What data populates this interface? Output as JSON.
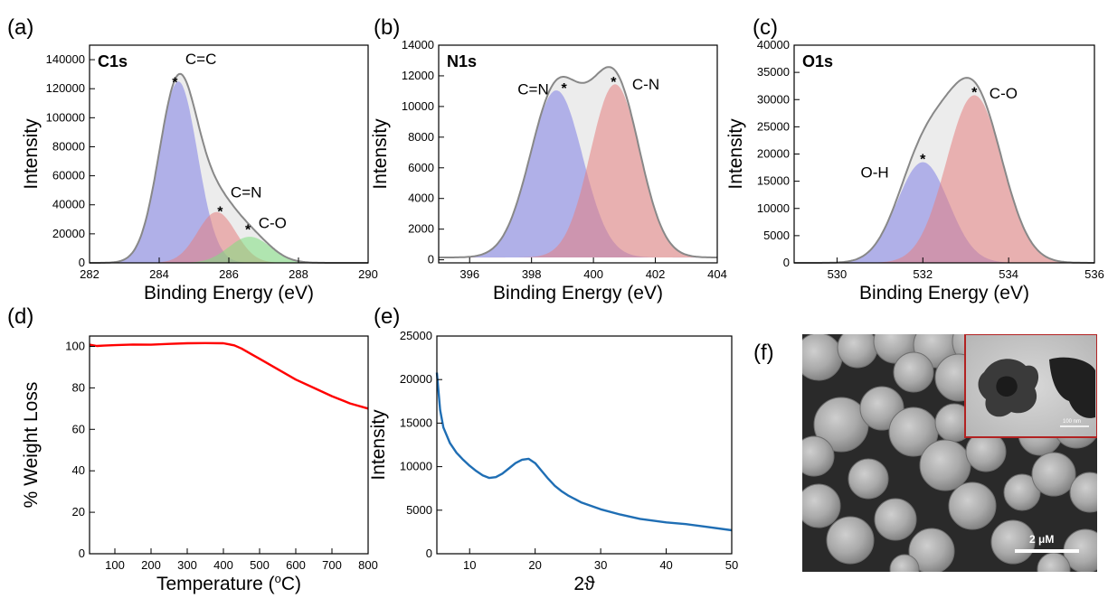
{
  "chart_data": [
    {
      "panel_label": "(a)",
      "type": "area",
      "title": "C1s",
      "xlabel": "Binding Energy (eV)",
      "ylabel": "Intensity",
      "xlim": [
        282,
        290
      ],
      "ylim": [
        0,
        150000
      ],
      "xticks": [
        282,
        284,
        286,
        288,
        290
      ],
      "yticks": [
        0,
        20000,
        40000,
        60000,
        80000,
        100000,
        120000,
        140000
      ],
      "baseline": 0,
      "peaks": [
        {
          "name": "C=C",
          "center": 284.55,
          "height": 125000,
          "width": 0.55,
          "color": "#8080e6",
          "label_at": [
            284.75,
            137000
          ],
          "star_at": [
            284.45,
            126000
          ]
        },
        {
          "name": "C=N",
          "center": 285.65,
          "height": 35000,
          "width": 0.55,
          "color": "#e68080",
          "label_at": [
            286.05,
            45000
          ],
          "star_at": [
            285.75,
            37000
          ]
        },
        {
          "name": "C-O",
          "center": 286.6,
          "height": 18000,
          "width": 0.6,
          "color": "#80e080",
          "label_at": [
            286.85,
            24000
          ],
          "star_at": [
            286.55,
            24500
          ]
        }
      ],
      "envelope_color": "#888888"
    },
    {
      "panel_label": "(b)",
      "type": "area",
      "title": "N1s",
      "xlabel": "Binding Energy (eV)",
      "ylabel": "Intensity",
      "xlim": [
        395,
        404
      ],
      "ylim": [
        -200,
        14000
      ],
      "xticks": [
        396,
        398,
        400,
        402,
        404
      ],
      "yticks": [
        0,
        2000,
        4000,
        6000,
        8000,
        10000,
        12000,
        14000
      ],
      "baseline": 150,
      "peaks": [
        {
          "name": "C=N",
          "center": 398.8,
          "height": 10900,
          "width": 0.85,
          "color": "#8080e6",
          "label_at": [
            397.55,
            10800
          ],
          "star_at": [
            399.05,
            11350
          ]
        },
        {
          "name": "C-N",
          "center": 400.7,
          "height": 11300,
          "width": 0.8,
          "color": "#e68080",
          "label_at": [
            401.25,
            11100
          ],
          "star_at": [
            400.65,
            11750
          ]
        }
      ],
      "envelope_color": "#888888"
    },
    {
      "panel_label": "(c)",
      "type": "area",
      "title": "O1s",
      "xlabel": "Binding Energy (eV)",
      "ylabel": "Intensity",
      "xlim": [
        529,
        536
      ],
      "ylim": [
        0,
        40000
      ],
      "xticks": [
        530,
        532,
        534,
        536
      ],
      "yticks": [
        0,
        5000,
        10000,
        15000,
        20000,
        25000,
        30000,
        35000,
        40000
      ],
      "baseline": 0,
      "peaks": [
        {
          "name": "O-H",
          "center": 532.0,
          "height": 18500,
          "width": 0.6,
          "color": "#8080e6",
          "label_at": [
            530.55,
            15700
          ],
          "star_at": [
            532.0,
            19500
          ]
        },
        {
          "name": "C-O",
          "center": 533.2,
          "height": 30800,
          "width": 0.65,
          "color": "#e68080",
          "label_at": [
            533.55,
            30200
          ],
          "star_at": [
            533.2,
            31800
          ]
        }
      ],
      "envelope_color": "#888888"
    },
    {
      "panel_label": "(d)",
      "type": "line",
      "title": "",
      "xlabel": "Temperature (°C)",
      "ylabel": "% Weight Loss",
      "xlim": [
        30,
        800
      ],
      "ylim": [
        0,
        105
      ],
      "xticks": [
        100,
        200,
        300,
        400,
        500,
        600,
        700,
        800
      ],
      "yticks": [
        0,
        20,
        40,
        60,
        80,
        100
      ],
      "series": [
        {
          "color": "#ff0000",
          "x": [
            30,
            50,
            70,
            100,
            150,
            200,
            250,
            300,
            350,
            400,
            430,
            450,
            480,
            500,
            550,
            600,
            650,
            700,
            750,
            800
          ],
          "y": [
            100.8,
            100.2,
            100.4,
            100.6,
            100.9,
            100.8,
            101.2,
            101.5,
            101.6,
            101.5,
            100.5,
            99,
            96,
            94,
            89,
            84,
            80,
            76,
            72.5,
            70
          ]
        }
      ]
    },
    {
      "panel_label": "(e)",
      "type": "line",
      "title": "",
      "xlabel": "2ϑ",
      "ylabel": "Intensity",
      "xlim": [
        5,
        50
      ],
      "ylim": [
        0,
        25000
      ],
      "xticks": [
        10,
        20,
        30,
        40,
        50
      ],
      "yticks": [
        0,
        5000,
        10000,
        15000,
        20000,
        25000
      ],
      "series": [
        {
          "color": "#1f6eb4",
          "x": [
            5,
            5.5,
            6,
            7,
            8,
            9,
            10,
            11,
            12,
            13,
            14,
            15,
            16,
            17,
            18,
            19,
            20,
            21,
            22,
            23,
            24,
            25,
            27,
            30,
            33,
            36,
            40,
            43,
            46,
            50
          ],
          "y": [
            20800,
            16500,
            14500,
            12700,
            11600,
            10800,
            10100,
            9500,
            9000,
            8700,
            8800,
            9200,
            9800,
            10400,
            10800,
            10900,
            10400,
            9500,
            8600,
            7800,
            7200,
            6700,
            5900,
            5100,
            4500,
            4000,
            3600,
            3400,
            3100,
            2700
          ]
        }
      ]
    }
  ],
  "panel_f": {
    "panel_label": "(f)",
    "scale_bar_label": "2 μM",
    "inset_scale_label": "100 nm"
  }
}
